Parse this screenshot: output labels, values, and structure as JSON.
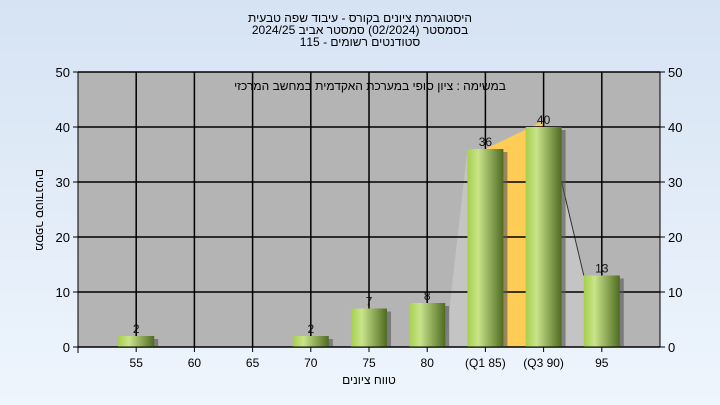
{
  "chart_data": {
    "type": "bar",
    "title_lines": [
      "היסטוגרמת ציונים בקורס - עיבוד שפה טבעית",
      "בסמסטר  (02/2024)  סמסטר אביב 2024/25",
      "סטודנטים רשומים - 115"
    ],
    "annotation": "במשימה : ציון סופי במערכת האקדמית במחשב המרכזי",
    "xlabel": "טווח ציונים",
    "ylabel": "מספר סטודנטים",
    "categories": [
      "55",
      "60",
      "65",
      "70",
      "75",
      "80",
      "(Q1 85)",
      "(Q3 90)",
      "95"
    ],
    "values": [
      2,
      0,
      0,
      2,
      7,
      8,
      36,
      40,
      13
    ],
    "ylim": [
      0,
      50
    ],
    "yticks": [
      0,
      10,
      20,
      30,
      40,
      50
    ],
    "grid": true,
    "colors": {
      "bar_light": "#c9e48a",
      "bar_mid": "#a6cf4c",
      "bar_dark": "#4f6b22",
      "plot_bg": "#b4b4b4",
      "quartile_fill": "#ffcc55",
      "curve_fill": "#c4c4c4"
    }
  }
}
